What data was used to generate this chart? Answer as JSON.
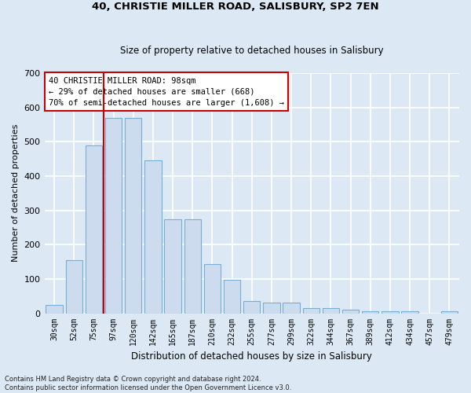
{
  "title": "40, CHRISTIE MILLER ROAD, SALISBURY, SP2 7EN",
  "subtitle": "Size of property relative to detached houses in Salisbury",
  "xlabel": "Distribution of detached houses by size in Salisbury",
  "ylabel": "Number of detached properties",
  "categories": [
    "30sqm",
    "52sqm",
    "75sqm",
    "97sqm",
    "120sqm",
    "142sqm",
    "165sqm",
    "187sqm",
    "210sqm",
    "232sqm",
    "255sqm",
    "277sqm",
    "299sqm",
    "322sqm",
    "344sqm",
    "367sqm",
    "389sqm",
    "412sqm",
    "434sqm",
    "457sqm",
    "479sqm"
  ],
  "values": [
    25,
    155,
    490,
    570,
    570,
    445,
    273,
    273,
    143,
    97,
    35,
    32,
    32,
    15,
    15,
    10,
    6,
    5,
    5,
    0,
    7
  ],
  "bar_color": "#ccdcee",
  "bar_edge_color": "#7aadd4",
  "plot_bg_color": "#dce9f5",
  "fig_bg_color": "#dce9f5",
  "grid_color": "#ffffff",
  "property_line_color": "#cc0000",
  "property_line_index": 3,
  "annotation_text": "40 CHRISTIE MILLER ROAD: 98sqm\n← 29% of detached houses are smaller (668)\n70% of semi-detached houses are larger (1,608) →",
  "annotation_box_facecolor": "#ffffff",
  "annotation_box_edgecolor": "#cc0000",
  "footer": "Contains HM Land Registry data © Crown copyright and database right 2024.\nContains public sector information licensed under the Open Government Licence v3.0.",
  "ylim": [
    0,
    700
  ],
  "yticks": [
    0,
    100,
    200,
    300,
    400,
    500,
    600,
    700
  ],
  "title_fontsize": 9.5,
  "subtitle_fontsize": 8.5,
  "xlabel_fontsize": 8.5,
  "ylabel_fontsize": 8,
  "tick_fontsize": 8,
  "xtick_fontsize": 7,
  "annotation_fontsize": 7.5,
  "footer_fontsize": 6
}
